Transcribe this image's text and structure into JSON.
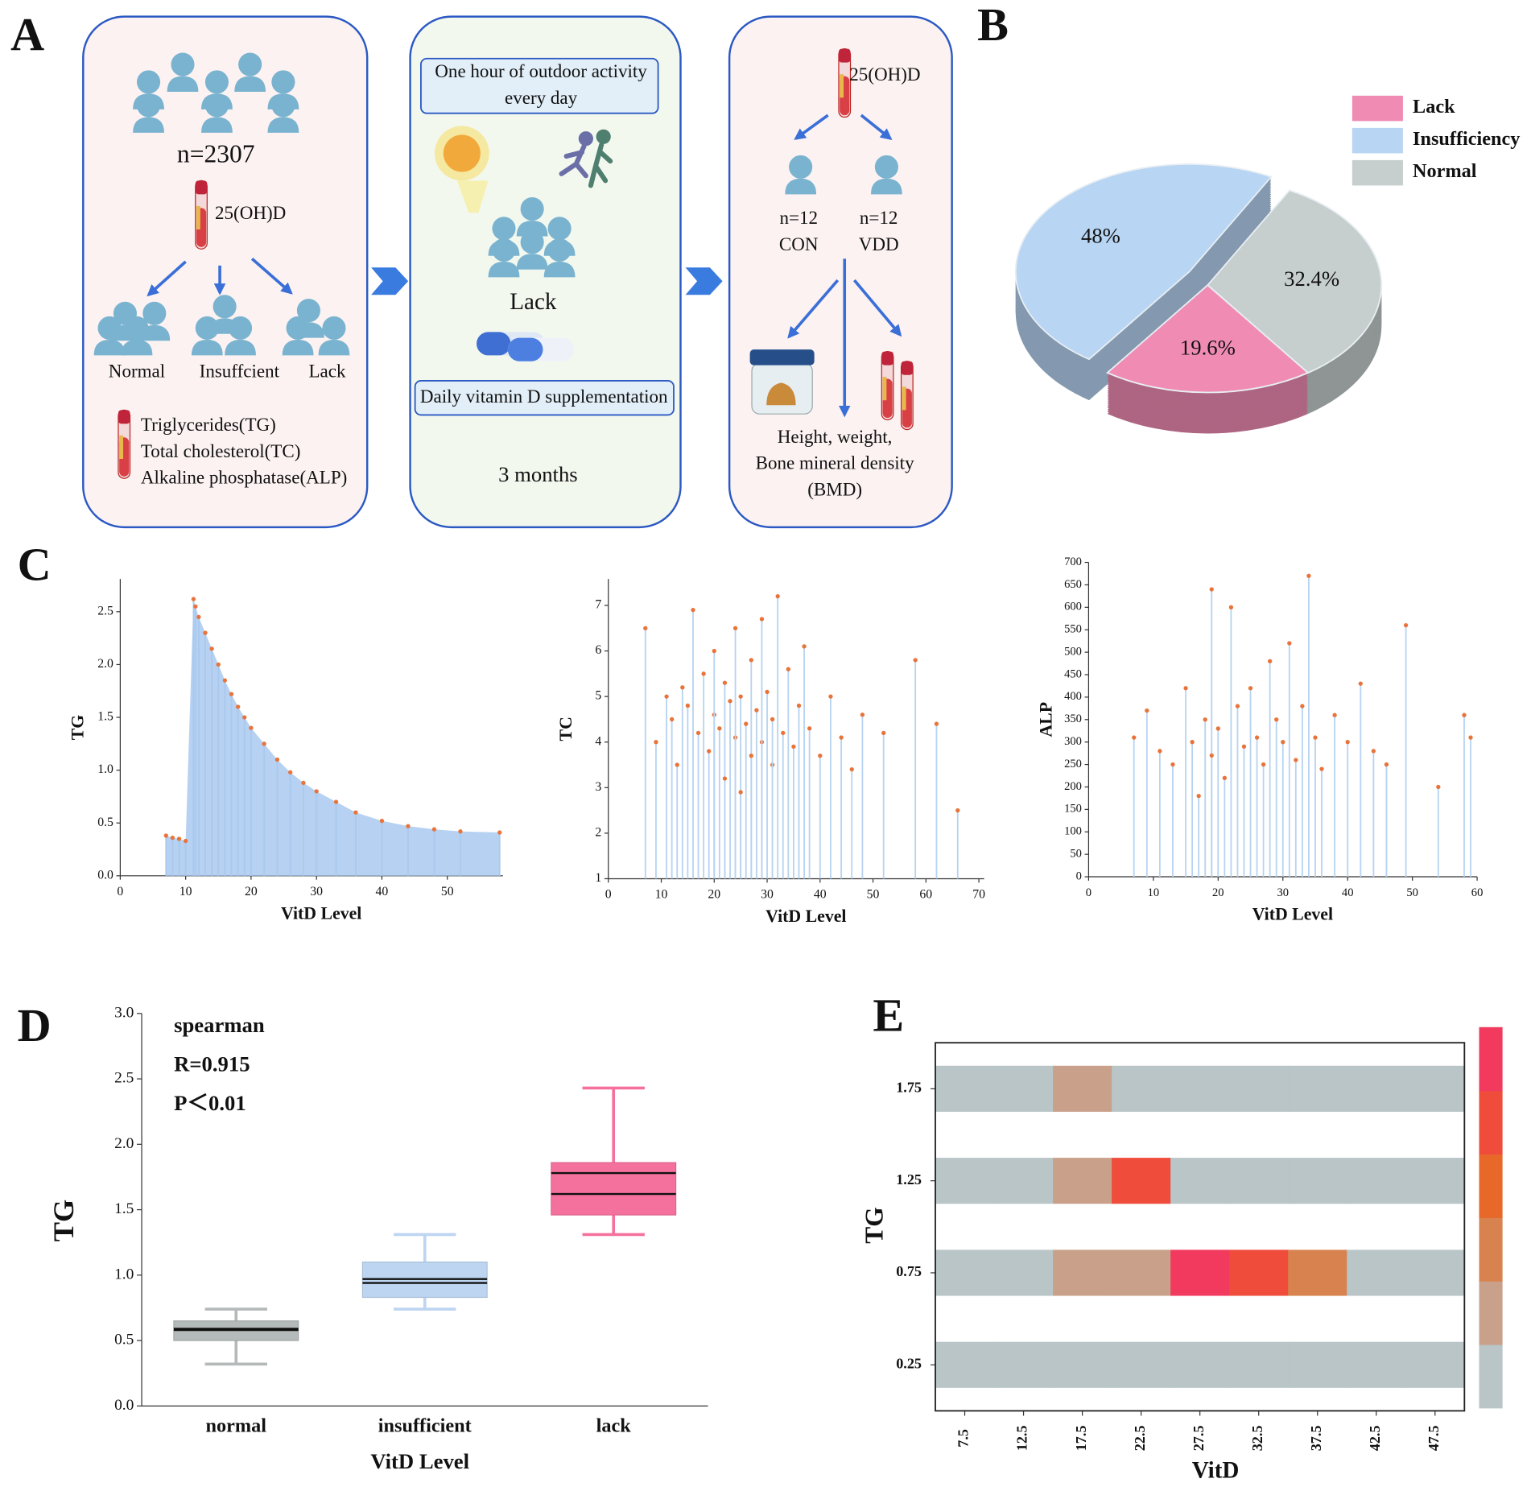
{
  "diagram": {
    "panel": "A",
    "box1": {
      "n": "n=2307",
      "test": "25(OH)D",
      "groups": [
        "Normal",
        "Insuffcient",
        "Lack"
      ],
      "measures": [
        "Triglycerides(TG)",
        "Total cholesterol(TC)",
        "Alkaline phosphatase(ALP)"
      ]
    },
    "box2": {
      "activity": [
        "One hour of outdoor activity",
        "every day"
      ],
      "group": "Lack",
      "supplement": "Daily vitamin D supplementation",
      "duration": "3 months"
    },
    "box3": {
      "test": "25(OH)D",
      "groups": [
        {
          "n": "n=12",
          "name": "CON"
        },
        {
          "n": "n=12",
          "name": "VDD"
        }
      ],
      "outcomes": [
        "Height, weight,",
        "Bone mineral density",
        "(BMD)"
      ]
    }
  },
  "chart_data": [
    {
      "type": "pie",
      "panel": "B",
      "categories": [
        "Lack",
        "Insufficiency",
        "Normal"
      ],
      "values": [
        19.6,
        48,
        32.4
      ],
      "value_labels": [
        "19.6%",
        "48%",
        "32.4%"
      ],
      "colors": [
        "#f08cb4",
        "#b8d5f3",
        "#c6cece"
      ],
      "explode": [
        0,
        1,
        0
      ],
      "legend": "top-right"
    },
    {
      "type": "scatter",
      "panel": "C",
      "stems": true,
      "area": true,
      "xlabel": "VitD Level",
      "ylabel": "TG",
      "x": [
        7,
        8,
        9,
        10,
        11.2,
        11.5,
        12,
        13,
        14,
        15,
        16,
        17,
        18,
        19,
        20,
        22,
        24,
        26,
        28,
        30,
        33,
        36,
        40,
        44,
        48,
        52,
        58
      ],
      "values": [
        0.38,
        0.36,
        0.35,
        0.33,
        2.62,
        2.55,
        2.45,
        2.3,
        2.15,
        2.0,
        1.85,
        1.72,
        1.6,
        1.5,
        1.4,
        1.25,
        1.1,
        0.98,
        0.88,
        0.8,
        0.7,
        0.6,
        0.52,
        0.47,
        0.44,
        0.42,
        0.41
      ],
      "xlim": [
        0,
        58.5
      ],
      "xticks": [
        0,
        10,
        20,
        30,
        40,
        50
      ],
      "ylim": [
        0,
        2.81
      ],
      "yticks": [
        {
          "value": 0,
          "label": "0.0"
        },
        0.5,
        {
          "value": 1,
          "label": "1.0"
        },
        1.5,
        {
          "value": 2,
          "label": "2.0"
        },
        2.5
      ],
      "color": "#e8743b",
      "stem_color": "#a9c9ee"
    },
    {
      "type": "scatter",
      "stems": true,
      "xlabel": "VitD Level",
      "ylabel": "TC",
      "x": [
        7,
        9,
        11,
        12,
        13,
        14,
        15,
        16,
        17,
        18,
        19,
        20,
        20,
        21,
        22,
        22,
        23,
        24,
        24,
        25,
        25,
        26,
        27,
        27,
        28,
        29,
        29,
        30,
        31,
        31,
        32,
        33,
        34,
        35,
        36,
        37,
        38,
        40,
        42,
        44,
        46,
        48,
        52,
        58,
        62,
        66
      ],
      "values": [
        6.5,
        4.0,
        5.0,
        4.5,
        3.5,
        5.2,
        4.8,
        6.9,
        4.2,
        5.5,
        3.8,
        4.6,
        6.0,
        4.3,
        5.3,
        3.2,
        4.9,
        4.1,
        6.5,
        5.0,
        2.9,
        4.4,
        5.8,
        3.7,
        4.7,
        4.0,
        6.7,
        5.1,
        3.5,
        4.5,
        7.2,
        4.2,
        5.6,
        3.9,
        4.8,
        6.1,
        4.3,
        3.7,
        5.0,
        4.1,
        3.4,
        4.6,
        4.2,
        5.8,
        4.4,
        2.5
      ],
      "xlim": [
        0,
        71
      ],
      "xticks": [
        0,
        10,
        20,
        30,
        40,
        50,
        60,
        70
      ],
      "ylim": [
        1,
        7.58
      ],
      "yticks": [
        1,
        2,
        3,
        4,
        5,
        6,
        7
      ],
      "color": "#e8743b",
      "stem_color": "#b7d3f1"
    },
    {
      "type": "scatter",
      "stems": true,
      "xlabel": "VitD Level",
      "ylabel": "ALP",
      "x": [
        7,
        9,
        11,
        13,
        15,
        16,
        17,
        18,
        19,
        19,
        20,
        21,
        22,
        23,
        24,
        25,
        26,
        27,
        28,
        29,
        30,
        31,
        32,
        33,
        34,
        35,
        36,
        38,
        40,
        42,
        44,
        46,
        49,
        54,
        58,
        59
      ],
      "values": [
        310,
        370,
        280,
        250,
        420,
        300,
        180,
        350,
        640,
        270,
        330,
        220,
        600,
        380,
        290,
        420,
        310,
        250,
        480,
        350,
        300,
        520,
        260,
        380,
        670,
        310,
        240,
        360,
        300,
        430,
        280,
        250,
        560,
        200,
        360,
        310
      ],
      "xlim": [
        0,
        60
      ],
      "xticks": [
        0,
        10,
        20,
        30,
        40,
        50,
        60
      ],
      "ylim": [
        0,
        700
      ],
      "yticks": [
        0,
        50,
        100,
        150,
        200,
        250,
        300,
        350,
        400,
        450,
        500,
        550,
        600,
        650,
        700
      ],
      "color": "#e8743b",
      "stem_color": "#b7d3f1"
    },
    {
      "type": "box",
      "panel": "D",
      "xlabel": "VitD Level",
      "ylabel": "TG",
      "categories": [
        "normal",
        "insufficient",
        "lack"
      ],
      "min": [
        0.32,
        0.74,
        1.31
      ],
      "q1": [
        0.5,
        0.83,
        1.46
      ],
      "median": [
        0.58,
        0.94,
        1.62
      ],
      "mean": [
        0.59,
        0.97,
        1.78
      ],
      "q3": [
        0.65,
        1.1,
        1.86
      ],
      "max": [
        0.74,
        1.31,
        2.43
      ],
      "colors": [
        "#b4baba",
        "#bdd5f1",
        "#f4719d"
      ],
      "ylim": [
        0,
        3
      ],
      "yticks": [
        {
          "value": 0,
          "label": "0.0"
        },
        0.5,
        {
          "value": 1,
          "label": "1.0"
        },
        1.5,
        {
          "value": 2,
          "label": "2.0"
        },
        2.5,
        {
          "value": 3,
          "label": "3.0"
        }
      ],
      "annotations": [
        "spearman",
        "R=0.915",
        "P＜0.01"
      ]
    },
    {
      "type": "heatmap",
      "panel": "E",
      "xlabel": "VitD",
      "ylabel": "TG",
      "x": [
        7.5,
        12.5,
        17.5,
        22.5,
        27.5,
        32.5,
        37.5,
        42.5,
        47.5
      ],
      "y": [
        1.75,
        1.25,
        0.75,
        0.25
      ],
      "values": [
        [
          0,
          0,
          1,
          0,
          0,
          0,
          0,
          0,
          0
        ],
        [
          0,
          0,
          1,
          4,
          0,
          0,
          0,
          0,
          0
        ],
        [
          0,
          0,
          1,
          1,
          5,
          4,
          2,
          0,
          0
        ],
        [
          0,
          0,
          0,
          0,
          0,
          0,
          0,
          0,
          0
        ]
      ],
      "ylim": [
        0,
        2
      ],
      "colorscale": [
        "#b9c5c7",
        "#c9a18a",
        "#d8834f",
        "#e8682a",
        "#f04c3c",
        "#f23a5e"
      ]
    }
  ]
}
